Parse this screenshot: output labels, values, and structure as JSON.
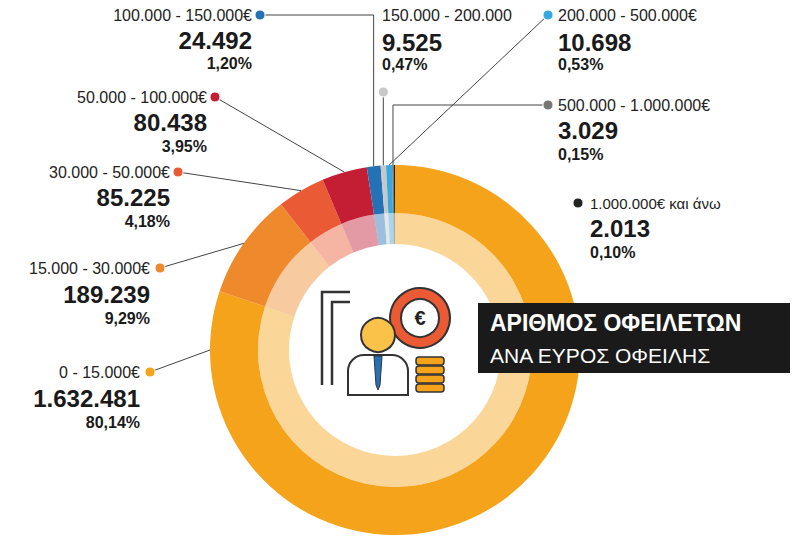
{
  "chart_data": {
    "type": "pie",
    "title": "ΑΡΙΘΜΟΣ ΟΦΕΙΛΕΤΩΝ",
    "subtitle": "ΑΝΑ ΕΥΡΟΣ ΟΦΕΙΛΗΣ",
    "icon_text": "€",
    "categories": [
      "0 - 15.000€",
      "15.000 - 30.000€",
      "30.000 - 50.000€",
      "50.000 - 100.000€",
      "100.000 - 150.000€",
      "150.000 - 200.000",
      "200.000 - 500.000€",
      "500.000 - 1.000.000€",
      "1.000.000€ και άνω"
    ],
    "values": [
      1632481,
      189239,
      85225,
      80438,
      24492,
      9525,
      10698,
      3029,
      2013
    ],
    "value_labels": [
      "1.632.481",
      "189.239",
      "85.225",
      "80.438",
      "24.492",
      "9.525",
      "10.698",
      "3.029",
      "2.013"
    ],
    "percentages": [
      80.14,
      9.29,
      4.18,
      3.95,
      1.2,
      0.47,
      0.53,
      0.15,
      0.1
    ],
    "percentage_labels": [
      "80,14%",
      "9,29%",
      "4,18%",
      "3,95%",
      "1,20%",
      "0,47%",
      "0,53%",
      "0,15%",
      "0,10%"
    ],
    "colors": [
      "#f5a31a",
      "#ef8a2c",
      "#ea5a34",
      "#c41e35",
      "#2571b5",
      "#c8c8c8",
      "#36a9e1",
      "#777777",
      "#222222"
    ],
    "data_labels": true
  }
}
